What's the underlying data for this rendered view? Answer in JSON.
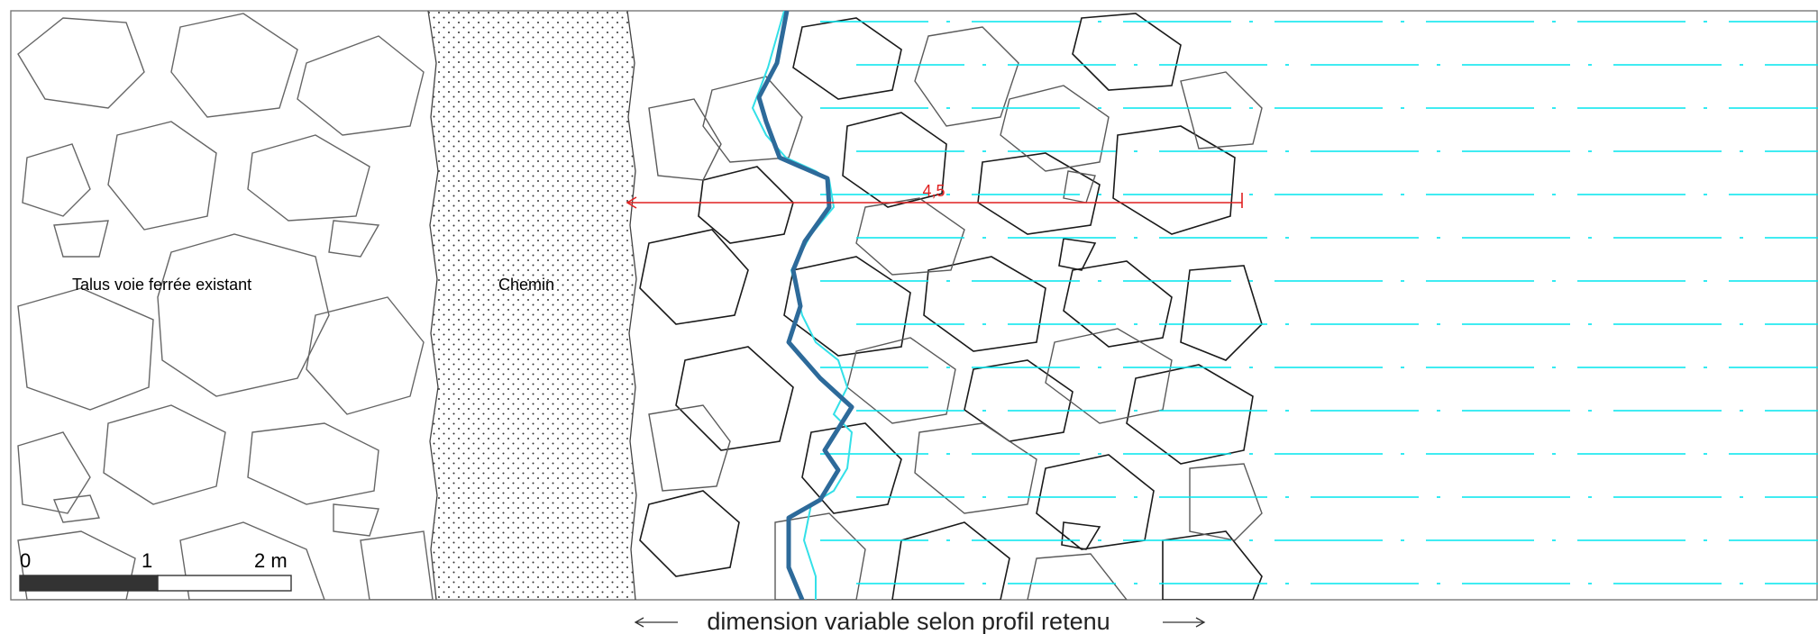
{
  "zones": {
    "embankment_label": "Talus voie ferrée existant",
    "path_label": "Chemin"
  },
  "dimension": {
    "value_label": "4,5",
    "caption": "dimension variable selon profil retenu"
  },
  "scale_bar": {
    "tick_0": "0",
    "tick_1": "1",
    "tick_2": "2 m"
  },
  "colors": {
    "outline": "#555555",
    "rock_dark": "#1a1a1a",
    "rock_grey": "#666666",
    "water_line": "#00e5ee",
    "section_line_dark": "#2d6a9a",
    "section_line_light": "#33e0e8",
    "dimension": "#e02020",
    "scale_fill": "#333333"
  }
}
